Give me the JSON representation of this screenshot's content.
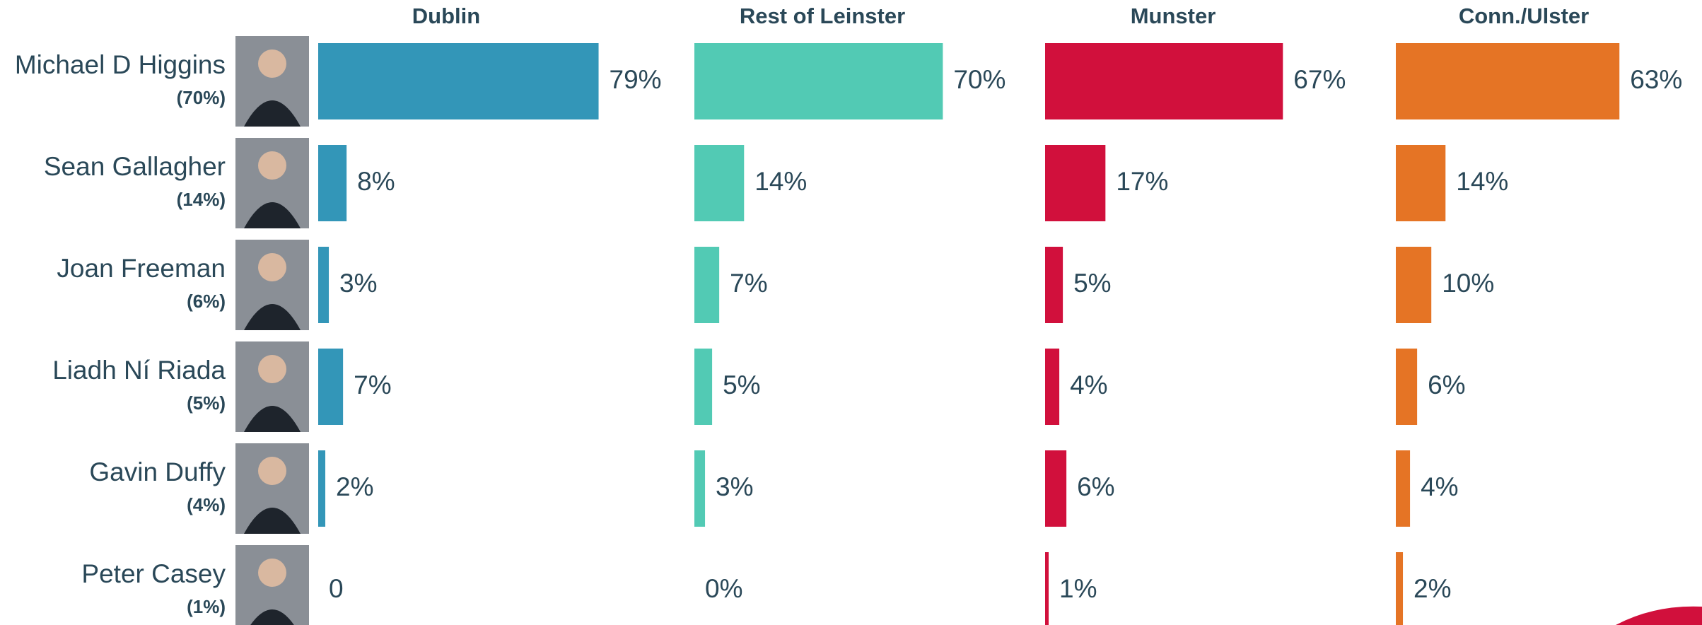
{
  "chart_data": {
    "type": "bar",
    "categories": [
      "Michael D Higgins",
      "Sean Gallagher",
      "Joan Freeman",
      "Liadh Ní Riada",
      "Gavin Duffy",
      "Peter Casey"
    ],
    "category_totals": [
      "(70%)",
      "(14%)",
      "(6%)",
      "(5%)",
      "(4%)",
      "(1%)"
    ],
    "series": [
      {
        "name": "Dublin",
        "color": "#3396b8",
        "values": [
          79,
          8,
          3,
          7,
          2,
          0
        ],
        "value_labels": [
          "79%",
          "8%",
          "3%",
          "7%",
          "2%",
          "0"
        ]
      },
      {
        "name": "Rest of Leinster",
        "color": "#52cab4",
        "values": [
          70,
          14,
          7,
          5,
          3,
          0
        ],
        "value_labels": [
          "70%",
          "14%",
          "7%",
          "5%",
          "3%",
          "0%"
        ]
      },
      {
        "name": "Munster",
        "color": "#d1103c",
        "values": [
          67,
          17,
          5,
          4,
          6,
          1
        ],
        "value_labels": [
          "67%",
          "17%",
          "5%",
          "4%",
          "6%",
          "1%"
        ]
      },
      {
        "name": "Conn./Ulster",
        "color": "#e57425",
        "values": [
          63,
          14,
          10,
          6,
          4,
          2
        ],
        "value_labels": [
          "63%",
          "14%",
          "10%",
          "6%",
          "4%",
          "2%"
        ]
      }
    ]
  }
}
